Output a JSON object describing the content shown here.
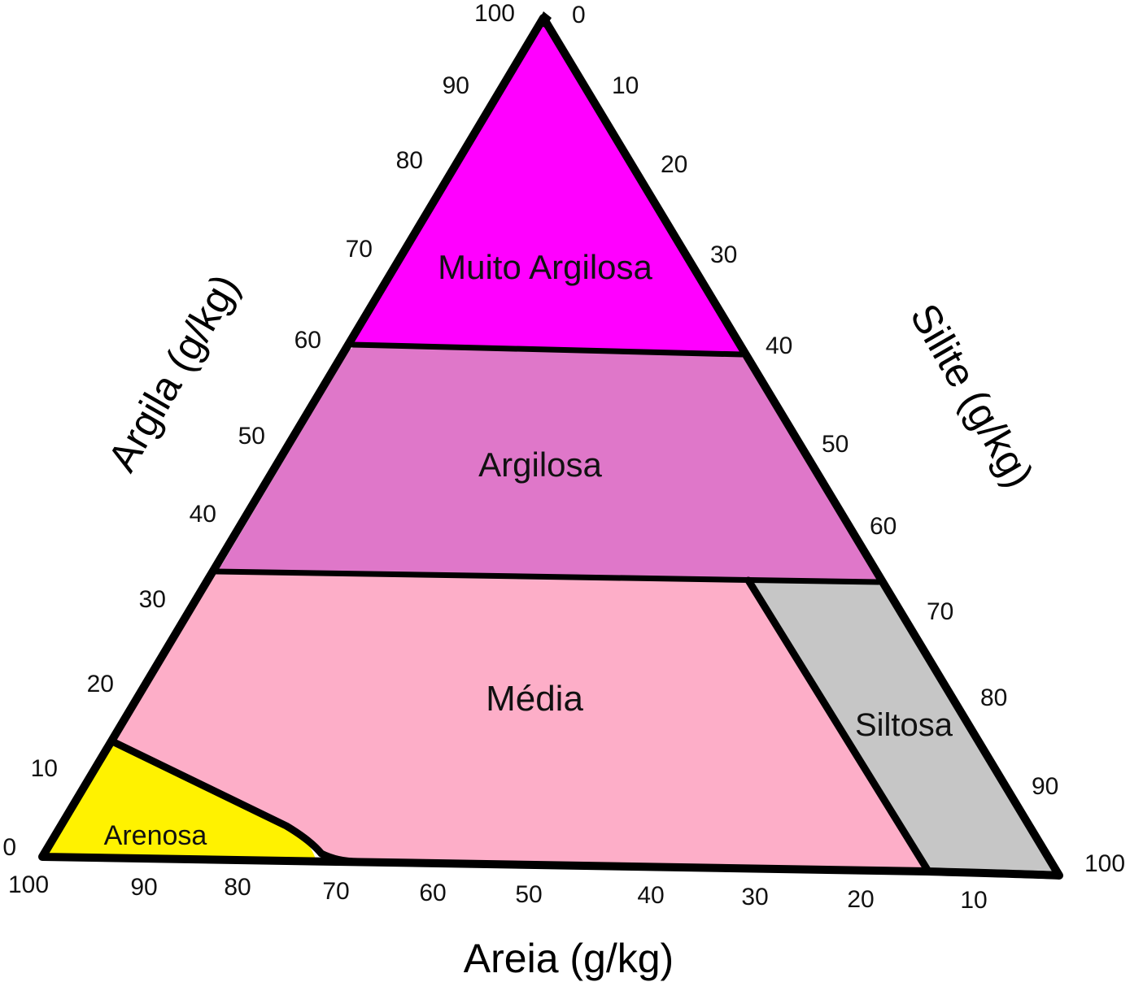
{
  "colors": {
    "muito_argilosa": "#ff00ff",
    "argilosa": "#df77c9",
    "media": "#fdaec8",
    "siltosa": "#c6c6c6",
    "arenosa": "#fff200",
    "outline": "#000000",
    "background": "#ffffff"
  },
  "axes": {
    "clay_title": "Argila (g/kg)",
    "silt_title": "Silite (g/kg)",
    "sand_title": "Areia (g/kg)",
    "clay_ticks": [
      "0",
      "10",
      "20",
      "30",
      "40",
      "50",
      "60",
      "70",
      "80",
      "90",
      "100"
    ],
    "silt_ticks": [
      "0",
      "10",
      "20",
      "30",
      "40",
      "50",
      "60",
      "70",
      "80",
      "90",
      "100"
    ],
    "sand_ticks": [
      "100",
      "90",
      "80",
      "70",
      "60",
      "50",
      "40",
      "30",
      "20",
      "10"
    ]
  },
  "regions": {
    "muito_argilosa": "Muito Argilosa",
    "argilosa": "Argilosa",
    "media": "Média",
    "siltosa": "Siltosa",
    "arenosa": "Arenosa"
  }
}
